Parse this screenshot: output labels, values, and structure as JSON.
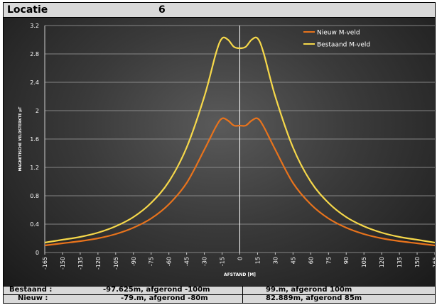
{
  "header": {
    "label": "Locatie",
    "value": "6"
  },
  "colors": {
    "nieuw": "#e8731c",
    "bestaand": "#f6d84a",
    "grid": "#9a9a9a",
    "axis": "#cccccc"
  },
  "chart_data": {
    "type": "line",
    "xlabel": "AFSTAND [M]",
    "ylabel": "MAGNETISCHE VELDSTERKTE µT",
    "xlim": [
      -165,
      165
    ],
    "ylim": [
      0,
      3.2
    ],
    "y_ticks": [
      0,
      0.4,
      0.8,
      1.2,
      1.6,
      2,
      2.4,
      2.8,
      3.2
    ],
    "x_ticks": [
      -165,
      -150,
      -135,
      -120,
      -105,
      -90,
      -75,
      -60,
      -45,
      -30,
      -15,
      0,
      15,
      30,
      45,
      60,
      75,
      90,
      105,
      120,
      135,
      150,
      165
    ],
    "grid": true,
    "legend_position": "top-right",
    "series": [
      {
        "name": "Nieuw M-veld",
        "color": "#e8731c",
        "x": [
          -165,
          -150,
          -135,
          -120,
          -105,
          -90,
          -75,
          -60,
          -45,
          -30,
          -20,
          -15,
          -10,
          -5,
          0,
          5,
          10,
          15,
          20,
          30,
          45,
          60,
          75,
          90,
          105,
          120,
          135,
          150,
          165
        ],
        "y": [
          0.1,
          0.13,
          0.16,
          0.2,
          0.26,
          0.35,
          0.48,
          0.68,
          0.98,
          1.45,
          1.78,
          1.89,
          1.86,
          1.79,
          1.79,
          1.79,
          1.86,
          1.89,
          1.78,
          1.45,
          0.98,
          0.68,
          0.48,
          0.35,
          0.26,
          0.2,
          0.16,
          0.13,
          0.1
        ]
      },
      {
        "name": "Bestaand M-veld",
        "color": "#f6d84a",
        "x": [
          -165,
          -150,
          -135,
          -120,
          -105,
          -90,
          -75,
          -60,
          -45,
          -30,
          -20,
          -15,
          -10,
          -5,
          0,
          5,
          10,
          15,
          20,
          30,
          45,
          60,
          75,
          90,
          105,
          120,
          135,
          150,
          165
        ],
        "y": [
          0.14,
          0.18,
          0.22,
          0.28,
          0.37,
          0.5,
          0.7,
          1.0,
          1.48,
          2.2,
          2.82,
          3.02,
          3.0,
          2.9,
          2.88,
          2.9,
          3.0,
          3.02,
          2.82,
          2.2,
          1.48,
          1.0,
          0.7,
          0.5,
          0.37,
          0.28,
          0.22,
          0.18,
          0.14
        ]
      }
    ]
  },
  "footer": {
    "rows": [
      {
        "label": "Bestaand :",
        "left": "-97.625m, afgerond -100m",
        "right": "99.m, afgerond 100m"
      },
      {
        "label": "Nieuw :",
        "left": "-79.m, afgerond -80m",
        "right": "82.889m, afgerond 85m"
      }
    ]
  }
}
